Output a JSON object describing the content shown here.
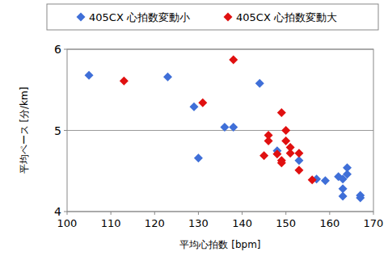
{
  "chart_data": {
    "type": "scatter",
    "x_label": "平均心拍数 [bpm]",
    "y_label": "平均ペース [分/km]",
    "xlim": [
      100,
      170
    ],
    "xticks": [
      100,
      110,
      120,
      130,
      140,
      150,
      160,
      170
    ],
    "ylim": [
      4,
      6
    ],
    "yticks": [
      4,
      5,
      6
    ],
    "grid": true,
    "legend": "top",
    "marker": "diamond",
    "series": [
      {
        "name": "405CX 心拍数変動小",
        "color": "#3f6fd8",
        "x": [
          105,
          123,
          129,
          130,
          136,
          138,
          144,
          148,
          153,
          157,
          159,
          162,
          163,
          163,
          163,
          164,
          164,
          167,
          167
        ],
        "values": [
          5.68,
          5.66,
          5.29,
          4.66,
          5.04,
          5.04,
          5.58,
          4.75,
          4.63,
          4.4,
          4.38,
          4.43,
          4.4,
          4.28,
          4.19,
          4.46,
          4.54,
          4.17,
          4.2
        ]
      },
      {
        "name": "405CX 心拍数変動大",
        "color": "#e01010",
        "x": [
          113,
          131,
          138,
          145,
          146,
          146,
          148,
          149,
          149,
          149,
          150,
          150,
          151,
          151,
          153,
          153,
          156
        ],
        "values": [
          5.61,
          5.34,
          5.87,
          4.69,
          4.94,
          4.87,
          4.71,
          5.22,
          4.63,
          4.6,
          5.0,
          4.87,
          4.79,
          4.72,
          4.72,
          4.51,
          4.39
        ]
      }
    ]
  }
}
